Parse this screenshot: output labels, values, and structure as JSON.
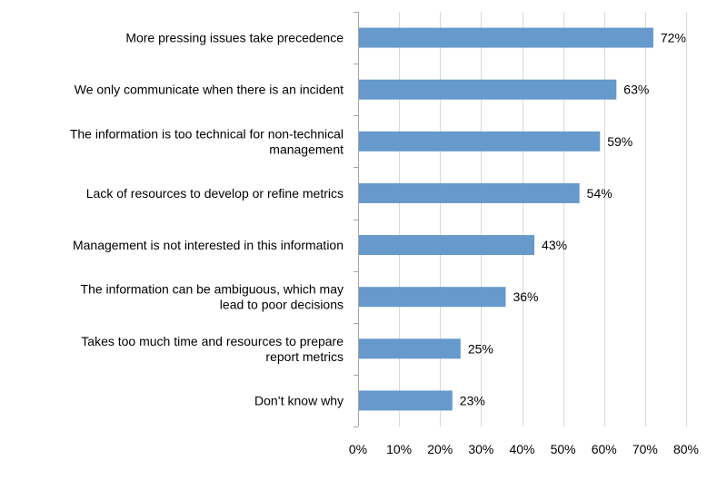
{
  "chart_data": {
    "type": "bar",
    "orientation": "horizontal",
    "categories": [
      "More pressing issues take precedence",
      "We only communicate when there is an incident",
      "The information is too technical for non-technical management",
      "Lack of resources to develop or refine metrics",
      "Management is not interested in this information",
      "The information can be ambiguous, which may lead to poor decisions",
      "Takes too much time and resources to prepare report metrics",
      "Don’t know why"
    ],
    "category_lines": [
      [
        "More pressing issues take precedence"
      ],
      [
        "We only communicate when there is an incident"
      ],
      [
        "The information is too technical for non-technical",
        "management"
      ],
      [
        "Lack of resources to develop or refine metrics"
      ],
      [
        "Management is not interested in this information"
      ],
      [
        "The information can be ambiguous, which may",
        "lead to poor decisions"
      ],
      [
        "Takes too much time and resources to prepare",
        "report metrics"
      ],
      [
        "Don’t know why"
      ]
    ],
    "values": [
      72,
      63,
      59,
      54,
      43,
      36,
      25,
      23
    ],
    "value_labels": [
      "72%",
      "63%",
      "59%",
      "54%",
      "43%",
      "36%",
      "25%",
      "23%"
    ],
    "xlim": [
      0,
      80
    ],
    "x_ticks": [
      "0%",
      "10%",
      "20%",
      "30%",
      "40%",
      "50%",
      "60%",
      "70%",
      "80%"
    ],
    "grid": true,
    "bar_color": "#6699CC",
    "grid_color": "#D9D9D9"
  }
}
